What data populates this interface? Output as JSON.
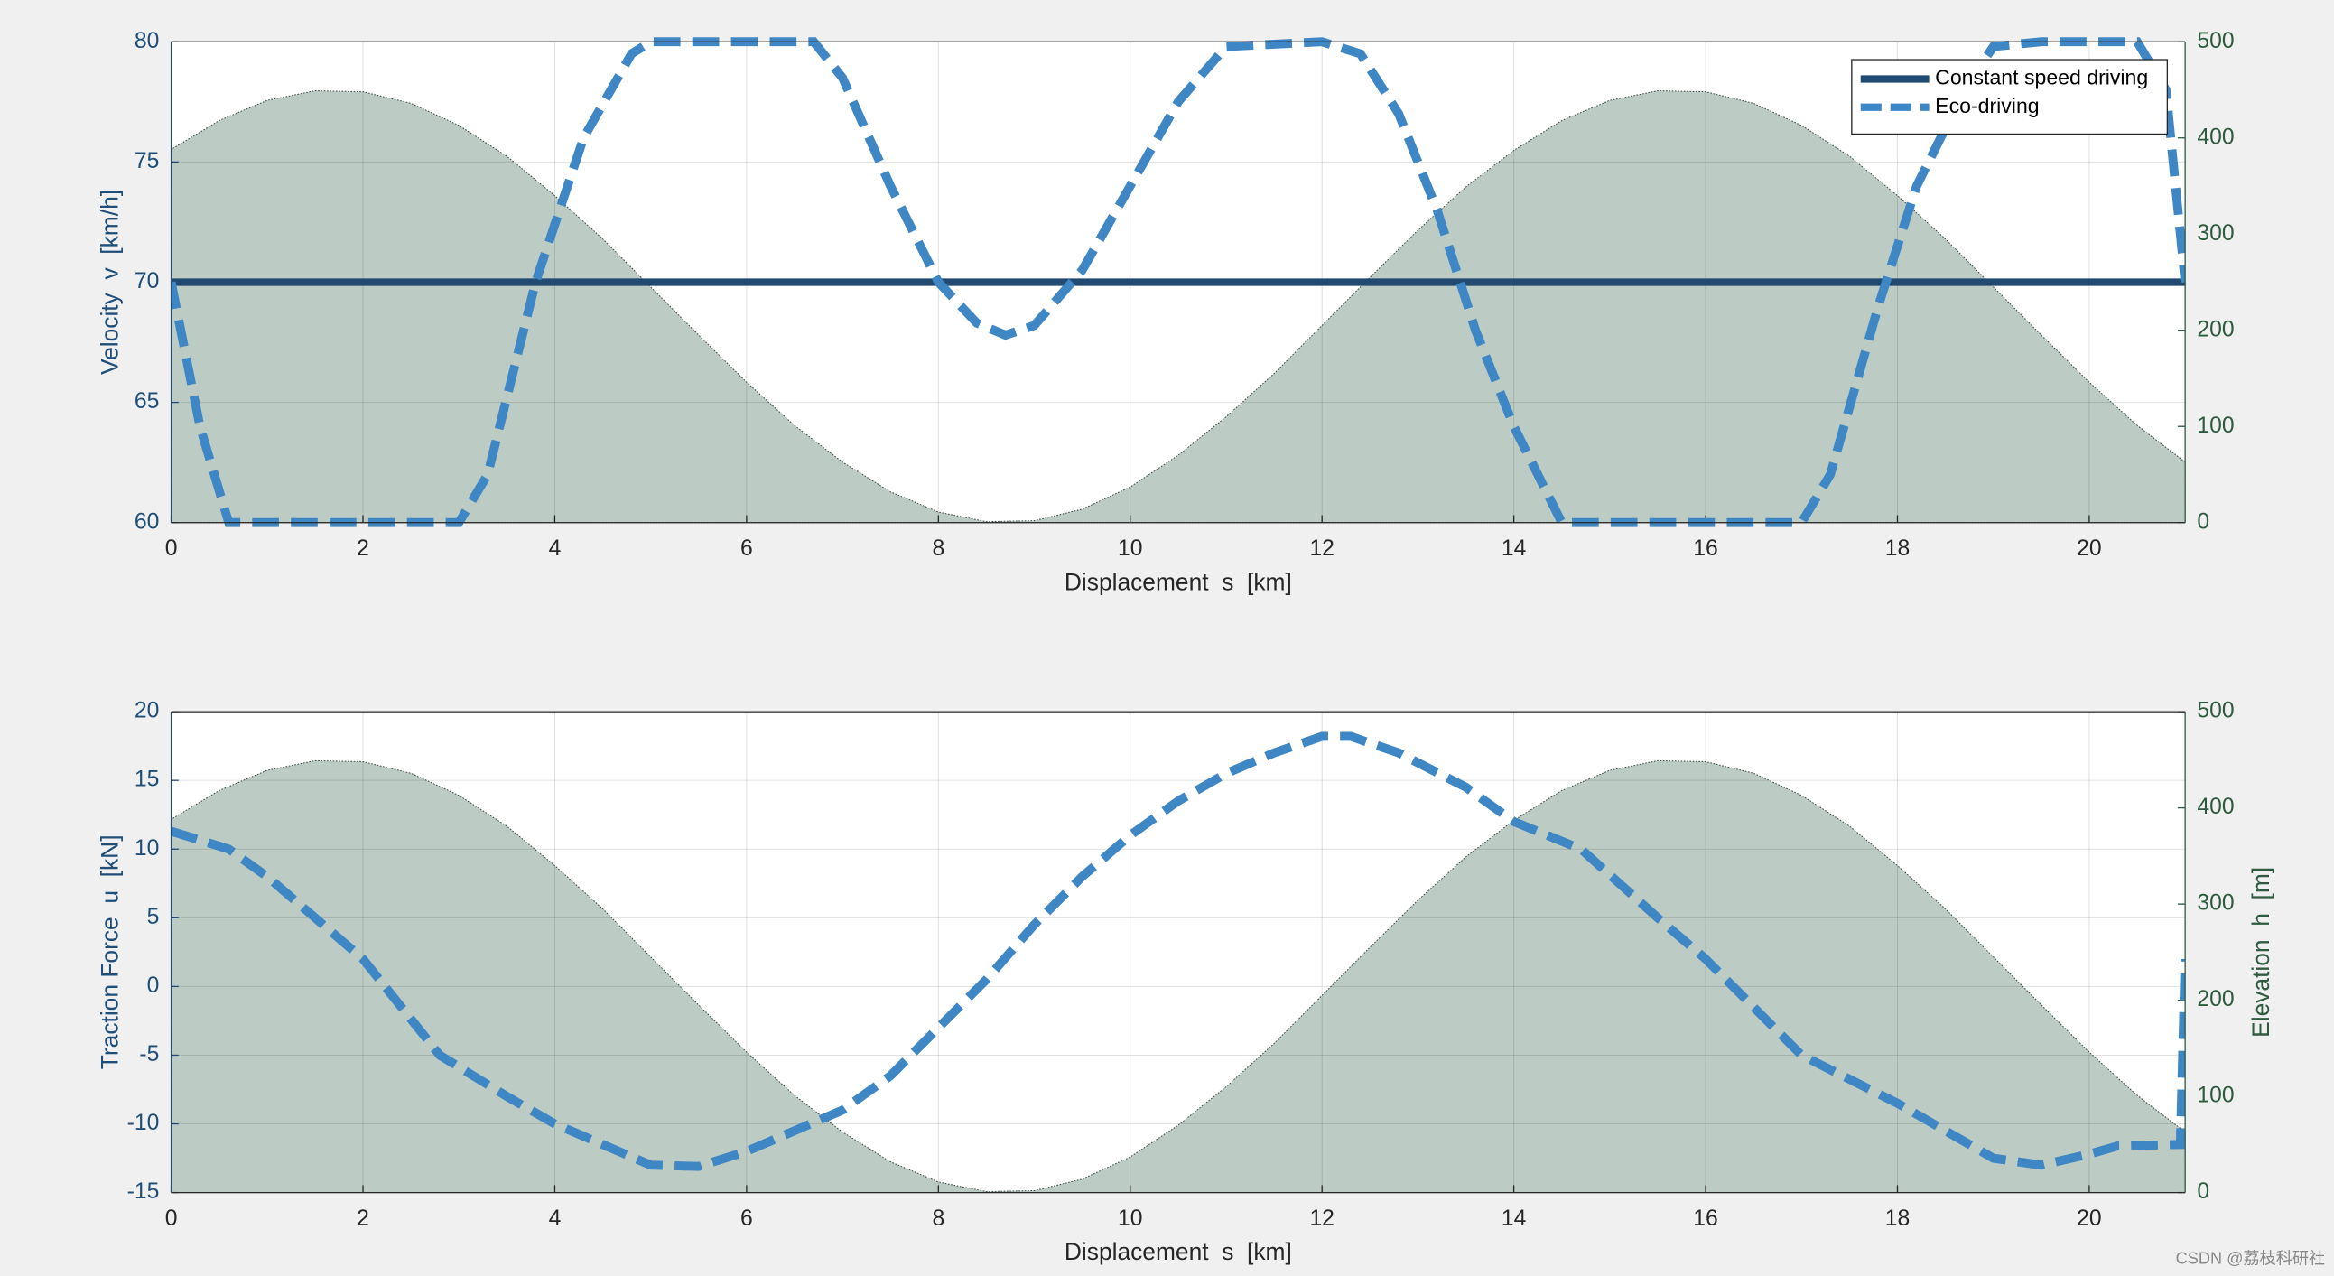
{
  "chart_data": [
    {
      "type": "line",
      "xlabel": "Displacement  s  [km]",
      "ylabel": "Velocity  v  [km/h]",
      "xlim": [
        0,
        21
      ],
      "xticks": [
        0,
        2,
        4,
        6,
        8,
        10,
        12,
        14,
        16,
        18,
        20
      ],
      "ylim": [
        60,
        80
      ],
      "yticks": [
        60,
        65,
        70,
        75,
        80
      ],
      "y2lim": [
        0,
        500
      ],
      "y2ticks": [
        0,
        100,
        200,
        300,
        400,
        500
      ],
      "grid": true,
      "legend": "northeast",
      "series": [
        {
          "axis": "y2",
          "type": "area",
          "color": "#bccbc4",
          "x": [
            0,
            0.5,
            1,
            1.5,
            2,
            2.5,
            3,
            3.5,
            4,
            4.5,
            5,
            5.5,
            6,
            6.5,
            7,
            7.5,
            8,
            8.5,
            9,
            9.5,
            10,
            10.5,
            11,
            11.5,
            12,
            12.5,
            13,
            13.5,
            14,
            14.5,
            15,
            15.5,
            16,
            16.5,
            17,
            17.5,
            18,
            18.5,
            19,
            19.5,
            20,
            20.5,
            21
          ],
          "values": [
            388,
            418,
            439,
            449,
            448,
            436,
            413,
            381,
            340,
            295,
            245,
            195,
            146,
            101,
            63,
            32,
            11,
            1,
            2,
            14,
            37,
            70,
            110,
            155,
            205,
            255,
            304,
            349,
            387,
            418,
            439,
            449,
            448,
            436,
            413,
            381,
            340,
            295,
            245,
            195,
            146,
            101,
            63
          ]
        },
        {
          "name": "Constant speed driving",
          "color": "#214a72",
          "dash": false,
          "x": [
            0,
            21
          ],
          "values": [
            70,
            70
          ]
        },
        {
          "name": "Eco-driving",
          "color": "#3f86c4",
          "dash": true,
          "x": [
            0,
            0.3,
            0.6,
            1,
            2,
            3,
            3.3,
            3.8,
            4.3,
            4.8,
            5,
            6,
            6.7,
            7,
            7.5,
            8,
            8.4,
            8.7,
            9,
            9.5,
            10,
            10.5,
            11,
            12,
            12.4,
            12.8,
            13.2,
            13.6,
            14,
            14.5,
            15,
            16,
            17,
            17.3,
            17.8,
            18.2,
            18.7,
            19,
            19.5,
            20.5,
            20.8,
            21
          ],
          "values": [
            70,
            64,
            60,
            60,
            60,
            60,
            62,
            70,
            76,
            79.5,
            80,
            80,
            80,
            78.5,
            74,
            70,
            68.3,
            67.8,
            68.2,
            70.5,
            74,
            77.5,
            79.8,
            80,
            79.5,
            77,
            73,
            68,
            64,
            60,
            60,
            60,
            60,
            62,
            69,
            74,
            78,
            79.8,
            80,
            80,
            78,
            70
          ]
        }
      ]
    },
    {
      "type": "line",
      "xlabel": "Displacement  s  [km]",
      "ylabel": "Traction Force  u  [kN]",
      "y2label": "Elevation  h  [m]",
      "xlim": [
        0,
        21
      ],
      "xticks": [
        0,
        2,
        4,
        6,
        8,
        10,
        12,
        14,
        16,
        18,
        20
      ],
      "ylim": [
        -15,
        20
      ],
      "yticks": [
        -15,
        -10,
        -5,
        0,
        5,
        10,
        15,
        20
      ],
      "y2lim": [
        0,
        500
      ],
      "y2ticks": [
        0,
        100,
        200,
        300,
        400,
        500
      ],
      "grid": true,
      "series": [
        {
          "axis": "y2",
          "type": "area",
          "color": "#bccbc4",
          "x": [
            0,
            0.5,
            1,
            1.5,
            2,
            2.5,
            3,
            3.5,
            4,
            4.5,
            5,
            5.5,
            6,
            6.5,
            7,
            7.5,
            8,
            8.5,
            9,
            9.5,
            10,
            10.5,
            11,
            11.5,
            12,
            12.5,
            13,
            13.5,
            14,
            14.5,
            15,
            15.5,
            16,
            16.5,
            17,
            17.5,
            18,
            18.5,
            19,
            19.5,
            20,
            20.5,
            21
          ],
          "values": [
            388,
            418,
            439,
            449,
            448,
            436,
            413,
            381,
            340,
            295,
            245,
            195,
            146,
            101,
            63,
            32,
            11,
            1,
            2,
            14,
            37,
            70,
            110,
            155,
            205,
            255,
            304,
            349,
            387,
            418,
            439,
            449,
            448,
            436,
            413,
            381,
            340,
            295,
            245,
            195,
            146,
            101,
            63
          ]
        },
        {
          "color": "#3f86c4",
          "dash": true,
          "x": [
            0,
            0.6,
            1,
            2,
            2.8,
            3.5,
            4,
            5,
            5.5,
            6,
            6.5,
            7,
            7.5,
            8,
            8.5,
            9,
            9.5,
            10,
            10.5,
            11,
            11.5,
            12,
            12.3,
            12.8,
            13.5,
            14,
            14.7,
            15.5,
            16,
            16.5,
            17,
            18,
            18.5,
            19,
            19.5,
            20,
            20.3,
            20.95,
            21
          ],
          "values": [
            11.3,
            10,
            8,
            2,
            -5,
            -8,
            -10,
            -13,
            -13.1,
            -12,
            -10.5,
            -9,
            -6.5,
            -3,
            0.5,
            4.5,
            8,
            11,
            13.5,
            15.5,
            17,
            18.2,
            18.2,
            17,
            14.5,
            12,
            10,
            5,
            2,
            -1.5,
            -5,
            -8.5,
            -10.5,
            -12.5,
            -13,
            -12.2,
            -11.6,
            -11.5,
            2
          ]
        }
      ]
    }
  ],
  "watermark": "CSDN @荔枝科研社"
}
